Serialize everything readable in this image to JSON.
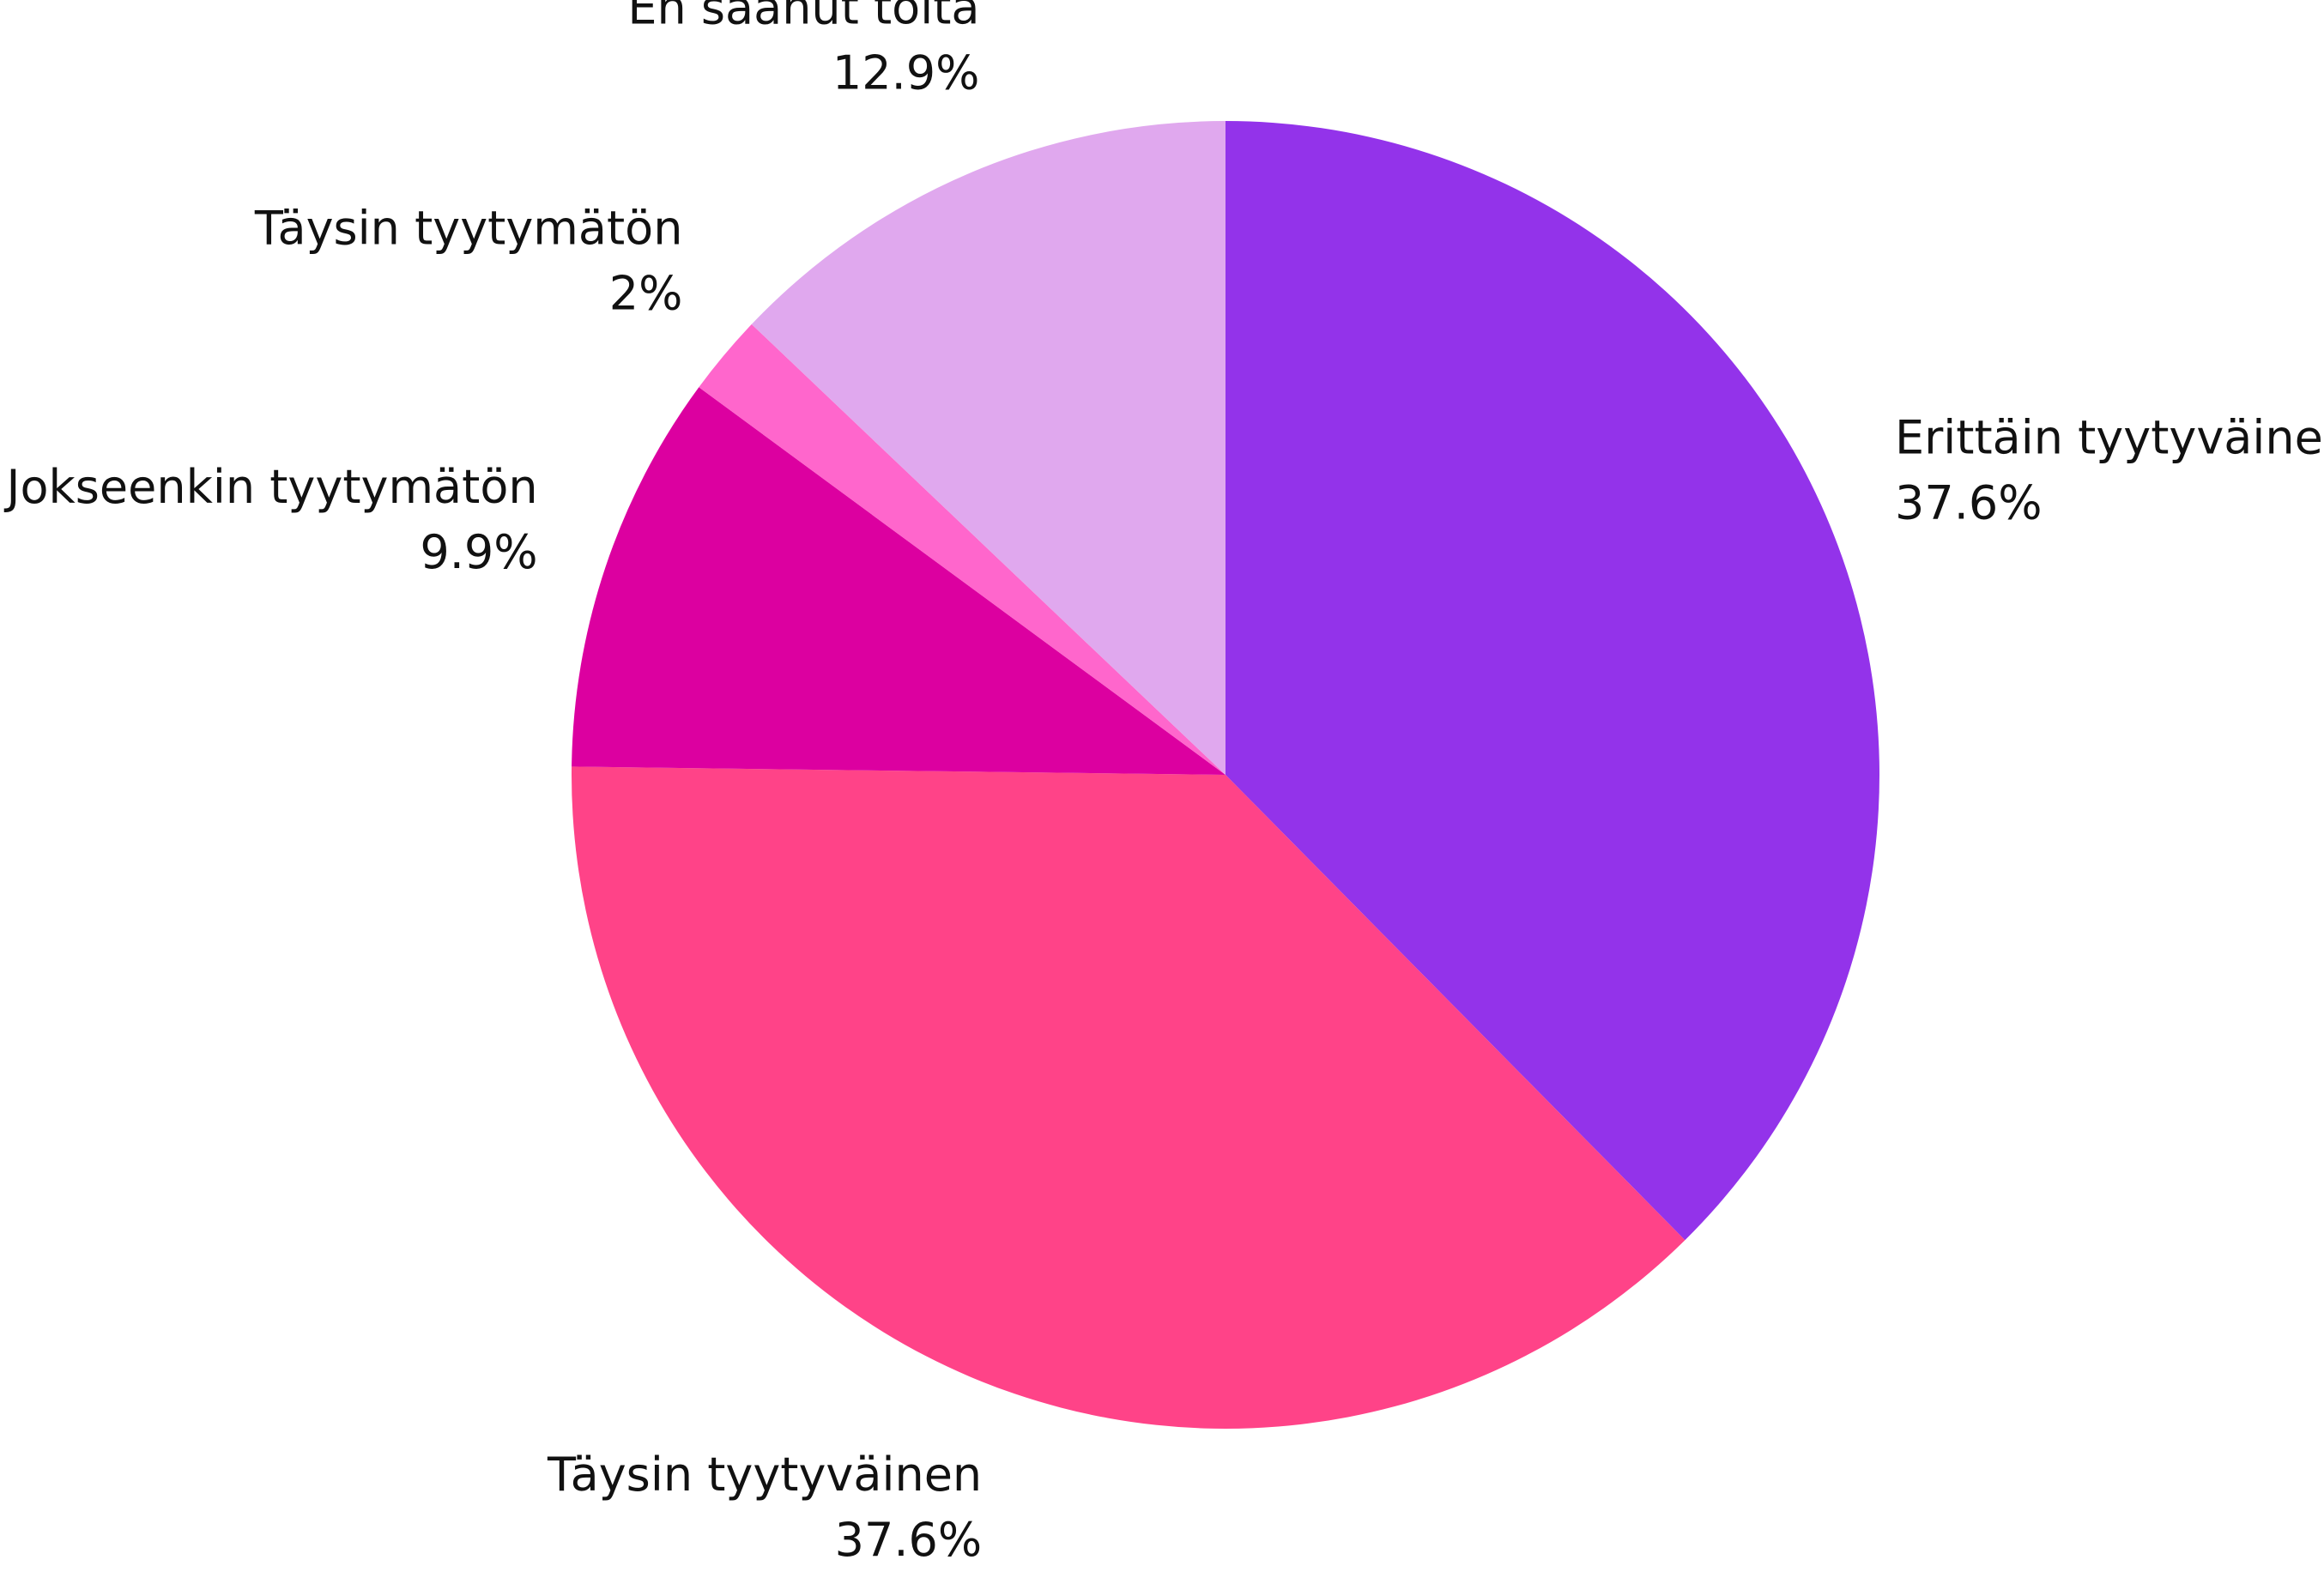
{
  "chart_data": {
    "type": "pie",
    "categories": [
      "Erittäin tyytyväinen",
      "Täysin tyytyväinen",
      "Jokseenkin tyytymätön",
      "Täysin tyytymätön",
      "En saanut töitä"
    ],
    "values": [
      37.6,
      37.6,
      9.9,
      2,
      12.9
    ],
    "value_labels": [
      "37.6%",
      "37.6%",
      "9.9%",
      "2%",
      "12.9%"
    ],
    "colors": [
      "#9333ea",
      "#ff4388",
      "#dc00a0",
      "#ff66cc",
      "#e0a8ee"
    ]
  }
}
